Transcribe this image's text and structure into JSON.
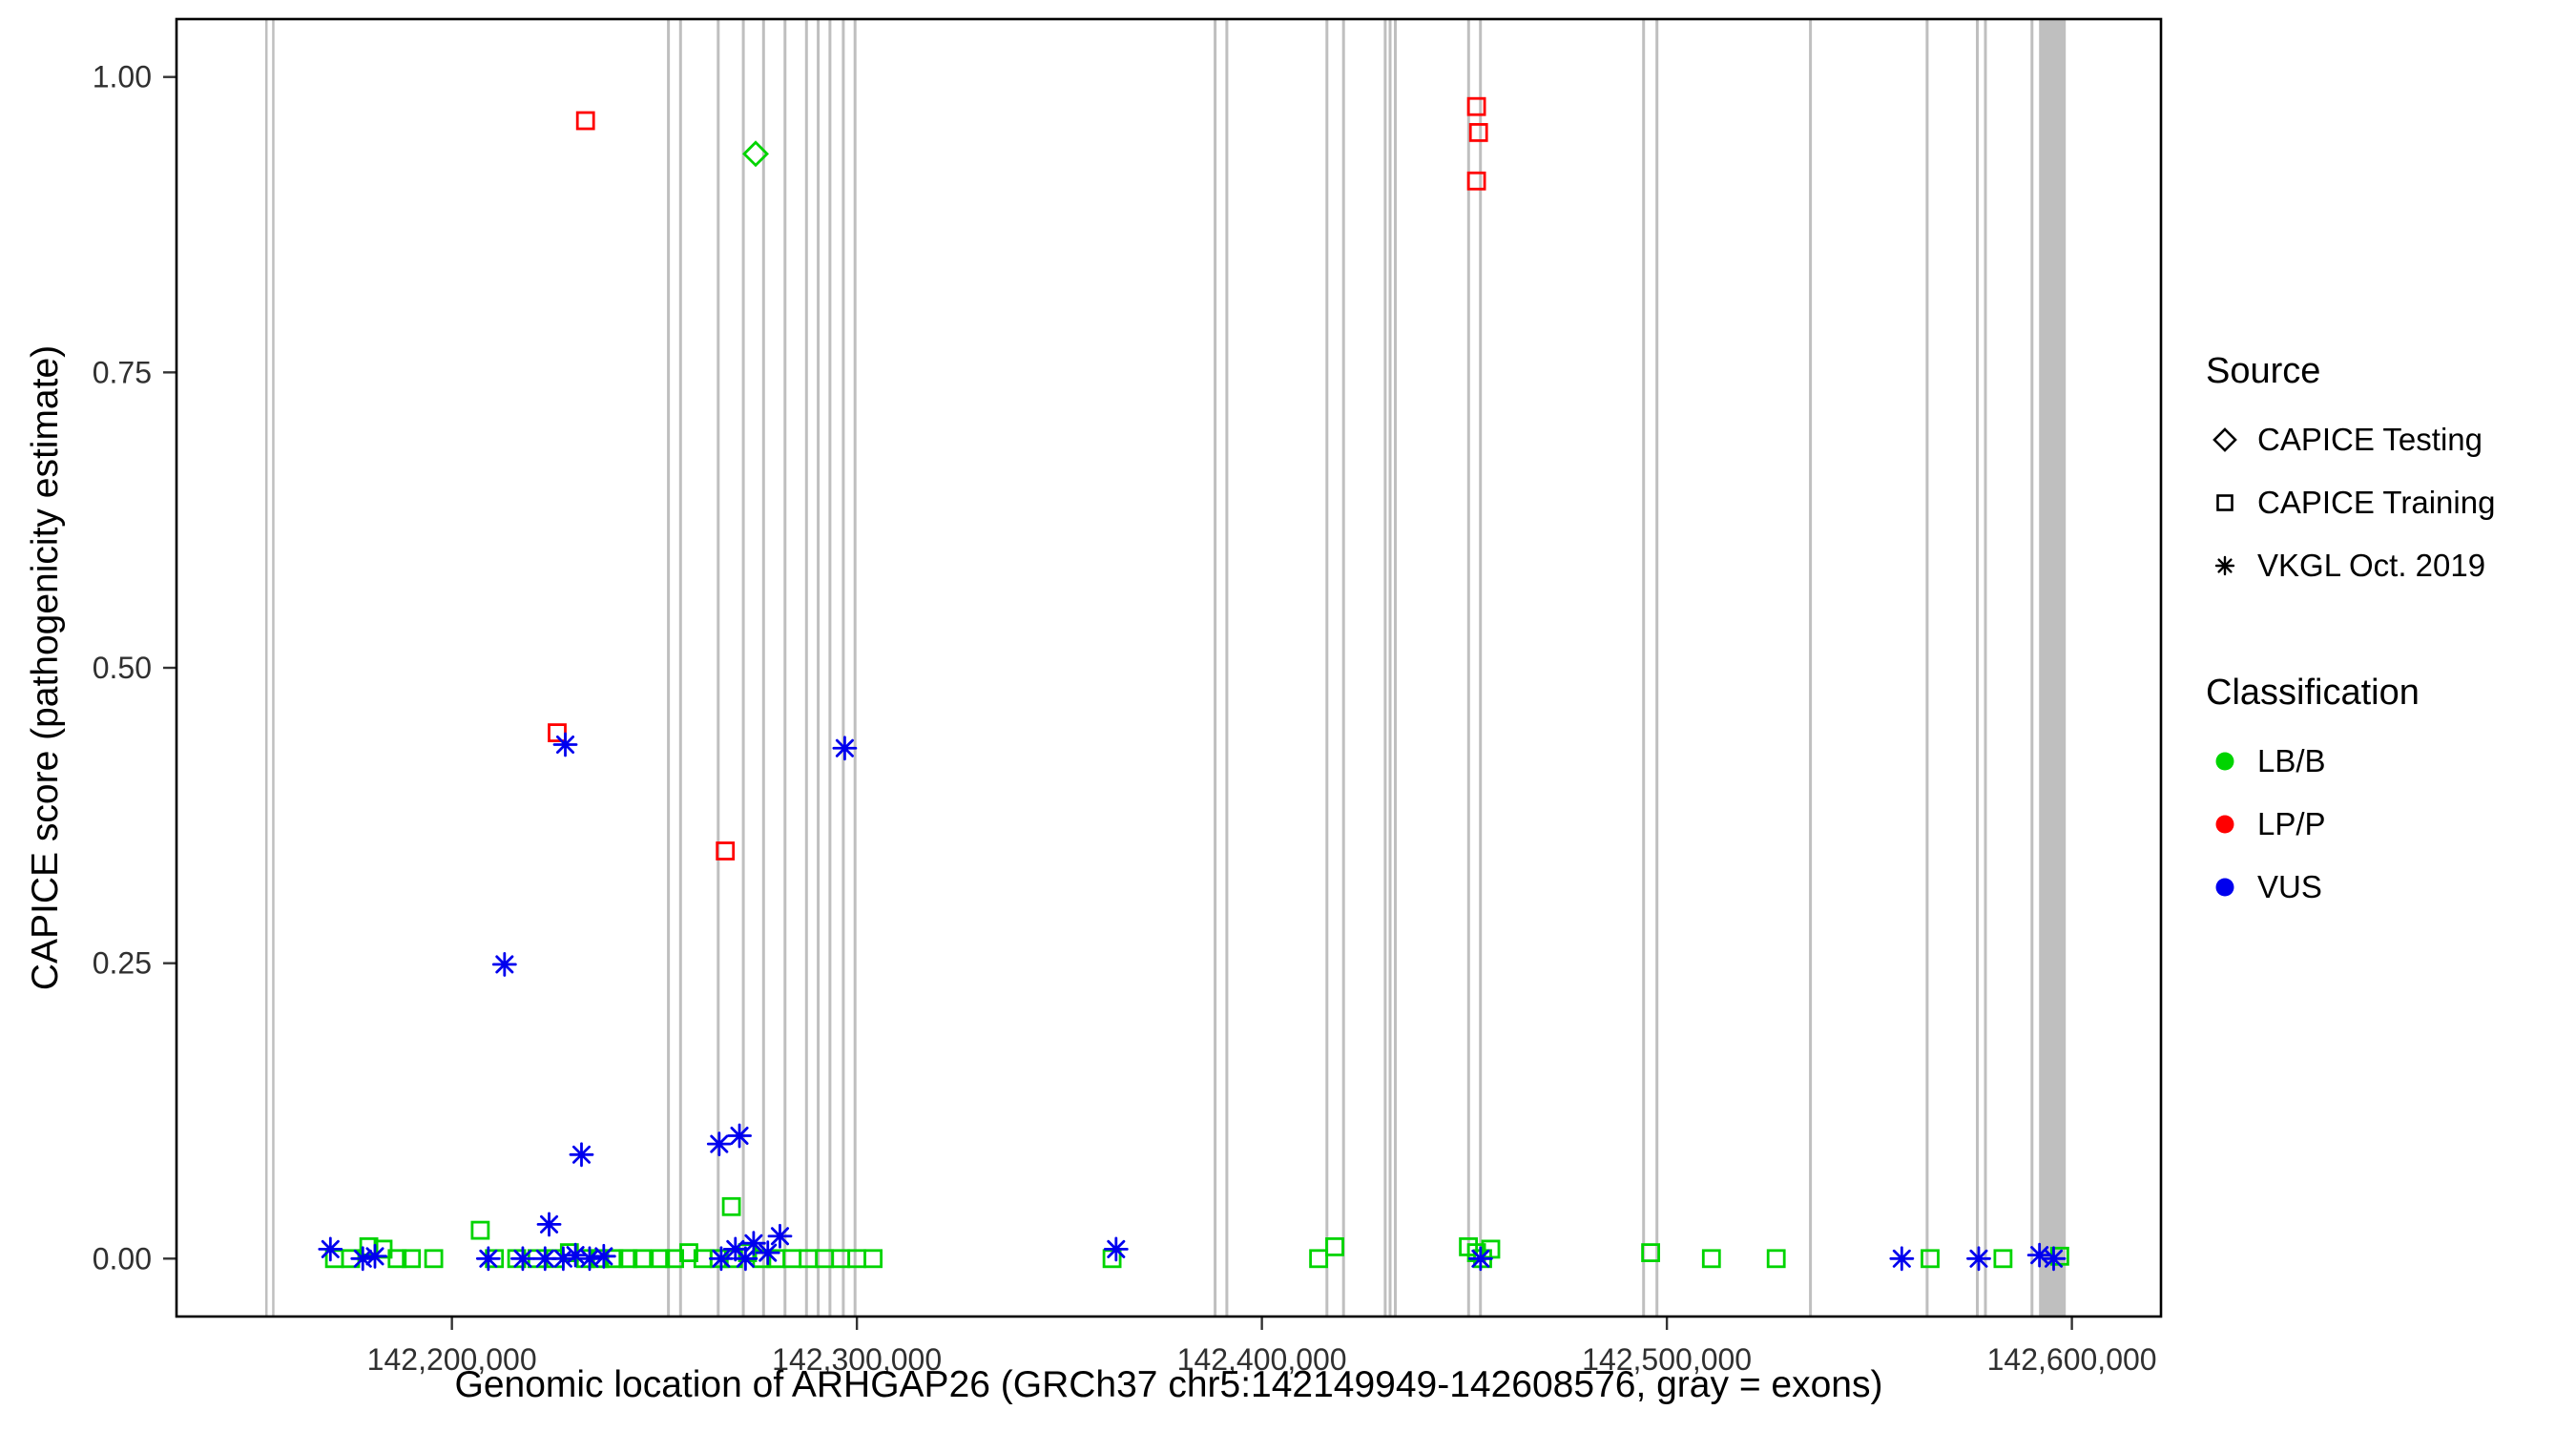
{
  "chart_data": {
    "type": "scatter",
    "title": "",
    "xlabel": "Genomic location of ARHGAP26 (GRCh37 chr5:142149949-142608576, gray = exons)",
    "ylabel": "CAPICE score (pathogenicity estimate)",
    "x_ticks": [
      142200000,
      142300000,
      142400000,
      142500000,
      142600000
    ],
    "x_tick_labels": [
      "142,200,000",
      "142,300,000",
      "142,400,000",
      "142,500,000",
      "142,600,000"
    ],
    "y_ticks": [
      0,
      0.25,
      0.5,
      0.75,
      1
    ],
    "y_tick_labels": [
      "0.00",
      "0.25",
      "0.50",
      "0.75",
      "1.00"
    ],
    "xlim": [
      142132000,
      142622000
    ],
    "ylim": [
      -0.049,
      1.049
    ],
    "grid": false,
    "legend_position": "right",
    "panel_border_color": "#000000",
    "exon_color": "#BFBFBF",
    "exons": [
      [
        142153900,
        142154500
      ],
      [
        142155600,
        142156200
      ],
      [
        142253100,
        142253800
      ],
      [
        142256100,
        142256800
      ],
      [
        142265400,
        142266100
      ],
      [
        142271600,
        142272300
      ],
      [
        142276600,
        142277300
      ],
      [
        142281900,
        142282600
      ],
      [
        142287200,
        142287900
      ],
      [
        142290100,
        142290800
      ],
      [
        142293000,
        142293700
      ],
      [
        142296300,
        142297000
      ],
      [
        142299200,
        142299900
      ],
      [
        142388100,
        142388800
      ],
      [
        142391000,
        142391700
      ],
      [
        142415700,
        142416400
      ],
      [
        142419800,
        142420500
      ],
      [
        142430100,
        142430800
      ],
      [
        142431300,
        142432000
      ],
      [
        142432600,
        142433300
      ],
      [
        142450700,
        142451400
      ],
      [
        142453600,
        142454300
      ],
      [
        142493900,
        142494600
      ],
      [
        142497200,
        142497900
      ],
      [
        142535100,
        142535800
      ],
      [
        142563900,
        142564600
      ],
      [
        142576300,
        142577000
      ],
      [
        142578300,
        142579000
      ],
      [
        142589800,
        142590500
      ],
      [
        142591900,
        142598500
      ]
    ],
    "series": [
      {
        "name": "CAPICE Testing / LB/B",
        "source": "CAPICE Testing",
        "classification": "LB/B",
        "shape": "diamond",
        "color": "#00D400",
        "points": [
          [
            142275000,
            0.935
          ]
        ]
      },
      {
        "name": "CAPICE Training / LB/B",
        "source": "CAPICE Training",
        "classification": "LB/B",
        "shape": "square",
        "color": "#00D400",
        "points": [
          [
            142171000,
            0
          ],
          [
            142175000,
            0
          ],
          [
            142179500,
            0.01
          ],
          [
            142183000,
            0.008
          ],
          [
            142186500,
            0
          ],
          [
            142190000,
            0
          ],
          [
            142195500,
            0
          ],
          [
            142207000,
            0.024
          ],
          [
            142210500,
            0
          ],
          [
            142216000,
            0
          ],
          [
            142221000,
            0
          ],
          [
            142225500,
            0
          ],
          [
            142229000,
            0.005
          ],
          [
            142233000,
            0
          ],
          [
            142236500,
            0
          ],
          [
            142240000,
            0
          ],
          [
            142243500,
            0
          ],
          [
            142247000,
            0
          ],
          [
            142251500,
            0
          ],
          [
            142255000,
            0
          ],
          [
            142258500,
            0.005
          ],
          [
            142262000,
            0
          ],
          [
            142266000,
            0
          ],
          [
            142269000,
            0.044
          ],
          [
            142269500,
            0
          ],
          [
            142273000,
            0.005
          ],
          [
            142276500,
            0
          ],
          [
            142280000,
            0
          ],
          [
            142284000,
            0
          ],
          [
            142288000,
            0
          ],
          [
            142292000,
            0
          ],
          [
            142296000,
            0
          ],
          [
            142300000,
            0
          ],
          [
            142304000,
            0
          ],
          [
            142363000,
            0
          ],
          [
            142414000,
            0
          ],
          [
            142418000,
            0.01
          ],
          [
            142451000,
            0.01
          ],
          [
            142453000,
            0.005
          ],
          [
            142454500,
            0
          ],
          [
            142456500,
            0.008
          ],
          [
            142496000,
            0.005
          ],
          [
            142511000,
            0
          ],
          [
            142527000,
            0
          ],
          [
            142565000,
            0
          ],
          [
            142583000,
            0
          ],
          [
            142597000,
            0.002
          ]
        ]
      },
      {
        "name": "CAPICE Training / LP/P",
        "source": "CAPICE Training",
        "classification": "LP/P",
        "shape": "square",
        "color": "#FF0000",
        "points": [
          [
            142233000,
            0.963
          ],
          [
            142226000,
            0.445
          ],
          [
            142267500,
            0.345
          ],
          [
            142453000,
            0.975
          ],
          [
            142453500,
            0.953
          ],
          [
            142453000,
            0.912
          ]
        ]
      },
      {
        "name": "VKGL Oct. 2019 / VUS",
        "source": "VKGL Oct. 2019",
        "classification": "VUS",
        "shape": "asterisk",
        "color": "#0000EE",
        "points": [
          [
            142228000,
            0.435
          ],
          [
            142297000,
            0.432
          ],
          [
            142213000,
            0.249
          ],
          [
            142271000,
            0.104
          ],
          [
            142266000,
            0.097
          ],
          [
            142232000,
            0.088
          ],
          [
            142224000,
            0.029
          ],
          [
            142281000,
            0.019
          ],
          [
            142170000,
            0.008
          ],
          [
            142178000,
            0
          ],
          [
            142181000,
            0.002
          ],
          [
            142209000,
            0
          ],
          [
            142217500,
            0
          ],
          [
            142223000,
            0
          ],
          [
            142227500,
            0
          ],
          [
            142230500,
            0.003
          ],
          [
            142234000,
            0
          ],
          [
            142237500,
            0.002
          ],
          [
            142266500,
            0
          ],
          [
            142270000,
            0.008
          ],
          [
            142272500,
            0
          ],
          [
            142274500,
            0.013
          ],
          [
            142278000,
            0.005
          ],
          [
            142364000,
            0.008
          ],
          [
            142454000,
            0
          ],
          [
            142558000,
            0
          ],
          [
            142577000,
            0
          ],
          [
            142592000,
            0.003
          ],
          [
            142595500,
            0
          ]
        ]
      }
    ],
    "legend": {
      "source": {
        "title": "Source",
        "items": [
          {
            "label": "CAPICE Testing",
            "shape": "diamond"
          },
          {
            "label": "CAPICE Training",
            "shape": "square"
          },
          {
            "label": "VKGL Oct. 2019",
            "shape": "asterisk"
          }
        ]
      },
      "classification": {
        "title": "Classification",
        "items": [
          {
            "label": "LB/B",
            "color": "#00D400"
          },
          {
            "label": "LP/P",
            "color": "#FF0000"
          },
          {
            "label": "VUS",
            "color": "#0000EE"
          }
        ]
      }
    }
  }
}
